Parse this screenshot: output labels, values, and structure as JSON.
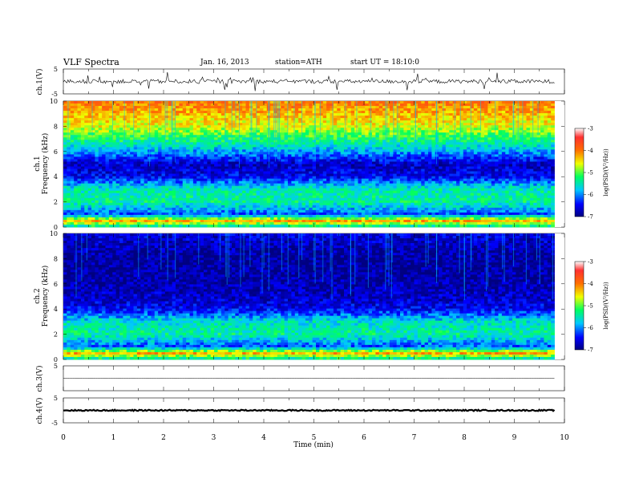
{
  "header": {
    "title": "VLF Spectra",
    "date": "Jan. 16, 2013",
    "station": "station=ATH",
    "start": "start  UT =   18:10:0"
  },
  "chart_data": [
    {
      "type": "line",
      "ylabel": "ch.1(V)",
      "ylim": [
        -5,
        5
      ],
      "yticks": [
        "5",
        "-5"
      ],
      "description_of_series": "noisy waveform centered near 0 V with sparse spikes"
    },
    {
      "type": "heatmap",
      "ylabel_channel": "ch.1",
      "ylabel": "Frequency (kHz)",
      "ylim": [
        0,
        10
      ],
      "yticks": [
        "0",
        "2",
        "4",
        "6",
        "8",
        "10"
      ],
      "colorbar": {
        "label": "log(PSD/(V²/Hz))",
        "range": [
          -7,
          -3
        ],
        "ticks": [
          "-3",
          "-4",
          "-5",
          "-6",
          "-7"
        ],
        "colors": [
          "#000080",
          "#0000ff",
          "#00d0ff",
          "#00ff60",
          "#ffff00",
          "#ff6000",
          "#ff2020",
          "#ffffff"
        ]
      },
      "bands_khz_to_logpsd": [
        [
          0,
          -5.6
        ],
        [
          0.5,
          -4.2
        ],
        [
          1,
          -6.2
        ],
        [
          2,
          -5.4
        ],
        [
          3,
          -5.5
        ],
        [
          4,
          -6.5
        ],
        [
          5,
          -6.7
        ],
        [
          6,
          -5.9
        ],
        [
          8,
          -4.6
        ],
        [
          10,
          -4.0
        ]
      ]
    },
    {
      "type": "heatmap",
      "ylabel_channel": "ch.2",
      "ylabel": "Frequency (kHz)",
      "ylim": [
        0,
        10
      ],
      "yticks": [
        "0",
        "2",
        "4",
        "6",
        "8",
        "10"
      ],
      "colorbar": {
        "label": "log(PSD/(V²/Hz))",
        "range": [
          -7,
          -3
        ],
        "ticks": [
          "-3",
          "-4",
          "-5",
          "-6",
          "-7"
        ]
      },
      "bands_khz_to_logpsd": [
        [
          0,
          -5.6
        ],
        [
          0.5,
          -4.2
        ],
        [
          1,
          -6.2
        ],
        [
          2,
          -5.4
        ],
        [
          3,
          -5.6
        ],
        [
          4,
          -6.5
        ],
        [
          5,
          -6.7
        ],
        [
          6,
          -6.8
        ],
        [
          8,
          -6.9
        ],
        [
          10,
          -6.6
        ]
      ]
    },
    {
      "type": "line",
      "ylabel": "ch.3(V)",
      "ylim": [
        -5,
        5
      ],
      "yticks": [
        "5"
      ],
      "description_of_series": "flat line near 0 V"
    },
    {
      "type": "line",
      "ylabel": "ch.4(V)",
      "ylim": [
        -5,
        5
      ],
      "yticks": [
        "5",
        "-5"
      ],
      "description_of_series": "thick flat band near 0 V"
    }
  ],
  "x_axis": {
    "label": "Time (min)",
    "range": [
      0,
      10
    ],
    "ticks": [
      "0",
      "1",
      "2",
      "3",
      "4",
      "5",
      "6",
      "7",
      "8",
      "9",
      "10"
    ],
    "data_end_min": 9.8
  }
}
